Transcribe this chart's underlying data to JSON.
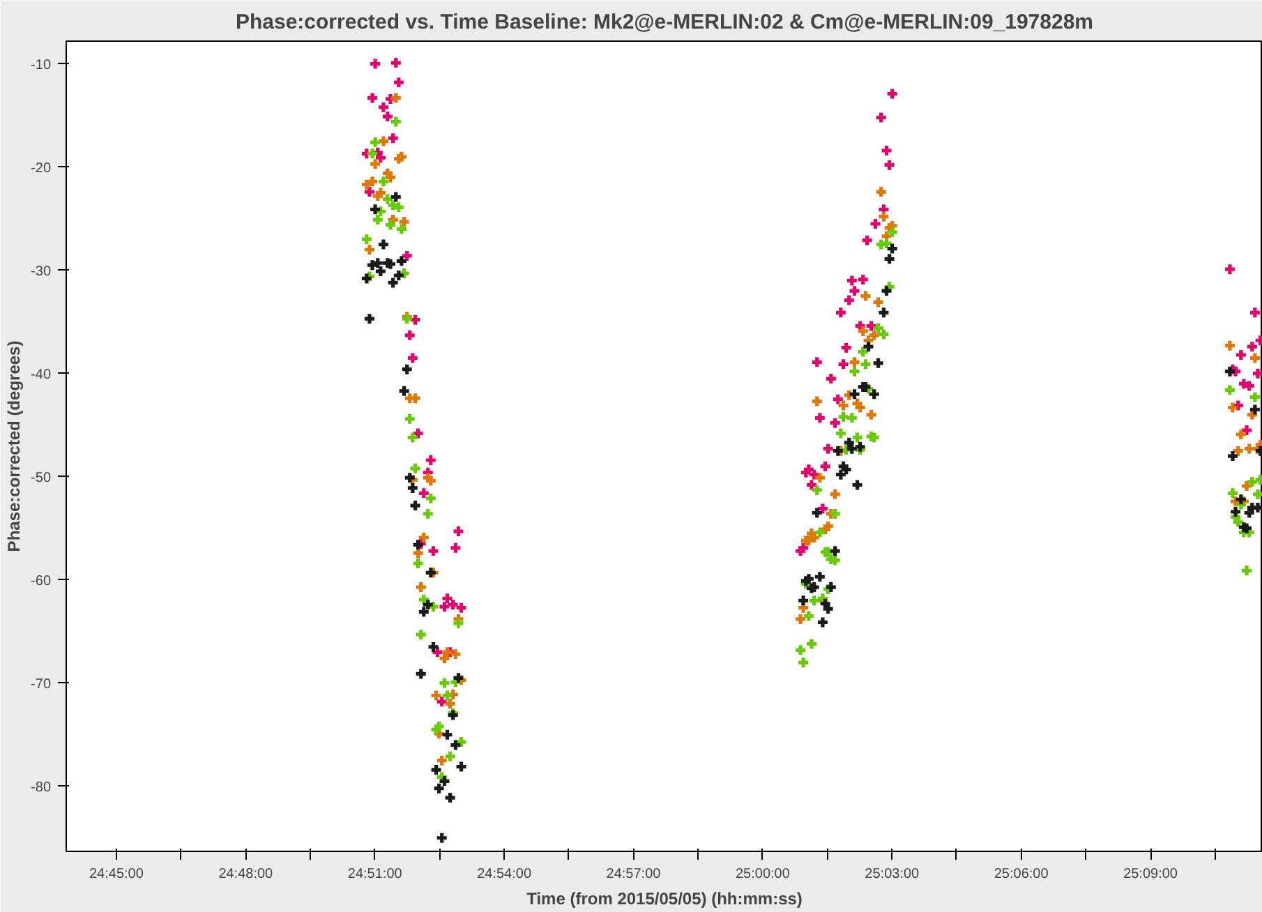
{
  "chart_data": {
    "type": "scatter",
    "title": "Phase:corrected vs. Time Baseline: Mk2@e-MERLIN:02 & Cm@e-MERLIN:09_197828m",
    "xlabel": "Time (from 2015/05/05) (hh:mm:ss)",
    "ylabel": "Phase:corrected (degrees)",
    "xlim": [
      24.7306,
      25.1934
    ],
    "ylim": [
      -86.3,
      -7.8
    ],
    "xticks": [
      {
        "value": 24.75,
        "label": "24:45:00"
      },
      {
        "value": 24.775,
        "label": null
      },
      {
        "value": 24.8,
        "label": "24:48:00"
      },
      {
        "value": 24.825,
        "label": null
      },
      {
        "value": 24.85,
        "label": "24:51:00"
      },
      {
        "value": 24.875,
        "label": null
      },
      {
        "value": 24.9,
        "label": "24:54:00"
      },
      {
        "value": 24.925,
        "label": null
      },
      {
        "value": 24.95,
        "label": "24:57:00"
      },
      {
        "value": 24.975,
        "label": null
      },
      {
        "value": 25.0,
        "label": "25:00:00"
      },
      {
        "value": 25.025,
        "label": null
      },
      {
        "value": 25.05,
        "label": "25:03:00"
      },
      {
        "value": 25.075,
        "label": null
      },
      {
        "value": 25.1,
        "label": "25:06:00"
      },
      {
        "value": 25.125,
        "label": null
      },
      {
        "value": 25.15,
        "label": "25:09:00"
      },
      {
        "value": 25.175,
        "label": null
      }
    ],
    "yticks": [
      -10,
      -20,
      -30,
      -40,
      -50,
      -60,
      -70,
      -80
    ],
    "grid": false,
    "marker": "cross",
    "series": [
      {
        "color": "#e6006e",
        "x": [
          24.8501,
          24.8581,
          24.8592,
          24.849,
          24.856,
          24.8533,
          24.8549,
          24.857,
          24.8468,
          24.8511,
          24.8522,
          24.8479,
          24.8624,
          24.8656,
          24.8635,
          24.8646,
          24.8667,
          24.8716,
          24.8705,
          24.8689,
          24.8823,
          24.8812,
          24.8726,
          24.8678,
          24.878,
          24.8769,
          24.8802,
          24.8834,
          24.8742,
          24.8791,
          24.8759,
          25.0501,
          25.0458,
          25.0479,
          25.049,
          25.0468,
          25.0436,
          25.0404,
          25.0345,
          25.0388,
          25.0355,
          25.0334,
          25.0302,
          25.0377,
          25.042,
          25.0323,
          25.021,
          25.0312,
          25.0264,
          25.0291,
          25.0221,
          25.028,
          25.0253,
          25.0167,
          25.0178,
          25.0199,
          25.0189,
          25.0242,
          25.0232,
          25.0146,
          25.0157,
          25.1807,
          25.1904,
          25.1925,
          25.1893,
          25.185,
          25.1818,
          25.1829,
          25.1915,
          25.1861,
          25.1882,
          25.1839,
          25.1872
        ],
        "values": [
          -10.0,
          -9.9,
          -11.8,
          -13.3,
          -13.4,
          -14.2,
          -15.1,
          -17.2,
          -18.7,
          -18.6,
          -19.1,
          -22.4,
          -28.6,
          -34.8,
          -36.3,
          -38.5,
          -45.8,
          -48.4,
          -49.6,
          -51.6,
          -55.3,
          -56.9,
          -57.2,
          -56.5,
          -61.8,
          -62.6,
          -62.4,
          -62.7,
          -67.0,
          -67.0,
          -71.8,
          -12.9,
          -15.2,
          -18.4,
          -19.8,
          -24.1,
          -25.5,
          -27.1,
          -31.0,
          -30.9,
          -32.0,
          -32.9,
          -34.1,
          -35.4,
          -35.4,
          -37.5,
          -38.9,
          -39.1,
          -40.5,
          -42.5,
          -44.3,
          -44.8,
          -47.3,
          -49.6,
          -49.3,
          -49.8,
          -50.8,
          -49.0,
          -53.1,
          -57.2,
          -56.9,
          -29.9,
          -34.1,
          -36.8,
          -37.4,
          -38.2,
          -39.6,
          -39.8,
          -40.0,
          -41.0,
          -41.2,
          -43.1,
          -45.5
        ]
      },
      {
        "color": "#e07800",
        "x": [
          24.8581,
          24.8533,
          24.8603,
          24.8592,
          24.8501,
          24.8549,
          24.856,
          24.8468,
          24.849,
          24.8511,
          24.8522,
          24.857,
          24.8613,
          24.8479,
          24.8624,
          24.8635,
          24.8656,
          24.8646,
          24.8705,
          24.8716,
          24.8689,
          24.8667,
          24.8726,
          24.8678,
          24.8823,
          24.878,
          24.8812,
          24.8769,
          24.8834,
          24.8802,
          24.8737,
          24.8791,
          24.8748,
          24.8759,
          25.0458,
          25.0468,
          25.049,
          25.0501,
          25.0479,
          25.0398,
          25.0447,
          25.0388,
          25.0431,
          25.0409,
          25.0355,
          25.021,
          25.0312,
          25.0366,
          25.0377,
          25.042,
          25.0334,
          25.0302,
          25.0221,
          25.028,
          25.0264,
          25.0242,
          25.0253,
          25.0189,
          25.0199,
          25.0167,
          25.0178,
          25.0232,
          25.0157,
          25.0146,
          25.1807,
          25.1904,
          25.1818,
          25.1893,
          25.185,
          25.1925,
          25.1915,
          25.1839,
          25.1882,
          25.1872,
          25.1829,
          25.1861
        ],
        "values": [
          -13.3,
          -17.5,
          -19.0,
          -19.2,
          -19.7,
          -20.6,
          -21.0,
          -21.7,
          -21.4,
          -22.8,
          -22.5,
          -25.1,
          -25.3,
          -28.0,
          -34.5,
          -42.4,
          -42.4,
          -50.3,
          -50.1,
          -50.4,
          -55.9,
          -57.4,
          -59.3,
          -60.7,
          -63.8,
          -67.0,
          -67.2,
          -67.6,
          -69.7,
          -71.1,
          -71.2,
          -72.0,
          -74.9,
          -77.5,
          -22.4,
          -24.8,
          -25.9,
          -25.7,
          -26.7,
          -32.5,
          -33.1,
          -35.9,
          -36.3,
          -36.8,
          -38.9,
          -42.7,
          -43.1,
          -42.9,
          -43.3,
          -44.0,
          -42.1,
          -47.5,
          -50.1,
          -51.7,
          -53.6,
          -55.1,
          -54.8,
          -55.5,
          -55.9,
          -56.2,
          -56.2,
          -62.0,
          -62.7,
          -63.8,
          -37.3,
          -38.5,
          -43.3,
          -44.0,
          -45.9,
          -46.9,
          -47.3,
          -47.5,
          -47.3,
          -50.9,
          -52.4,
          -52.4
        ]
      },
      {
        "color": "#66cc00",
        "x": [
          24.8581,
          24.8501,
          24.849,
          24.8533,
          24.8549,
          24.857,
          24.8592,
          24.8522,
          24.8511,
          24.856,
          24.8603,
          24.8468,
          24.8479,
          24.8613,
          24.8624,
          24.8635,
          24.8646,
          24.8656,
          24.8716,
          24.8705,
          24.8667,
          24.8689,
          24.8726,
          24.8823,
          24.8678,
          24.8769,
          24.8812,
          24.878,
          24.8802,
          24.8748,
          24.8737,
          24.8834,
          24.8791,
          24.8759,
          25.0501,
          25.0458,
          25.0479,
          25.049,
          25.0447,
          25.0468,
          25.0388,
          25.0398,
          25.0355,
          25.0409,
          25.0312,
          25.0345,
          25.0302,
          25.0366,
          25.042,
          25.0431,
          25.0323,
          25.0377,
          25.021,
          25.028,
          25.0221,
          25.0242,
          25.0253,
          25.0264,
          25.028,
          25.0167,
          25.0253,
          25.0199,
          25.0232,
          25.0178,
          25.0189,
          25.0146,
          25.0157,
          25.1807,
          25.1904,
          25.1925,
          25.1893,
          25.1818,
          25.1915,
          25.185,
          25.1829,
          25.1839,
          25.1861,
          25.1882,
          25.1872
        ],
        "values": [
          -15.6,
          -17.6,
          -18.7,
          -21.4,
          -23.1,
          -23.7,
          -23.9,
          -24.3,
          -25.1,
          -25.6,
          -26.0,
          -27.0,
          -30.6,
          -30.3,
          -34.7,
          -44.4,
          -46.2,
          -49.2,
          -52.1,
          -53.6,
          -58.4,
          -61.9,
          -62.6,
          -64.2,
          -65.3,
          -70.0,
          -69.9,
          -71.2,
          -72.9,
          -74.2,
          -74.5,
          -75.7,
          -77.1,
          -79.1,
          -26.3,
          -27.5,
          -27.4,
          -31.6,
          -35.6,
          -36.2,
          -37.9,
          -39.1,
          -39.8,
          -41.5,
          -44.2,
          -44.3,
          -45.8,
          -46.2,
          -46.1,
          -46.2,
          -47.4,
          -47.4,
          -51.3,
          -53.6,
          -55.4,
          -57.3,
          -57.3,
          -58.0,
          -58.1,
          -60.4,
          -60.9,
          -62.0,
          -61.8,
          -63.5,
          -66.2,
          -66.8,
          -68.0,
          -41.6,
          -42.3,
          -50.3,
          -50.5,
          -51.6,
          -51.7,
          -52.7,
          -53.9,
          -54.4,
          -55.4,
          -55.4,
          -59.1
        ]
      },
      {
        "color": "#1a1a1a",
        "x": [
          24.8581,
          24.8501,
          24.8533,
          24.8603,
          24.849,
          24.8511,
          24.8549,
          24.856,
          24.8522,
          24.8592,
          24.8468,
          24.857,
          24.8479,
          24.8624,
          24.8613,
          24.8635,
          24.8646,
          24.8656,
          24.8667,
          24.8716,
          24.8705,
          24.8689,
          24.8726,
          24.8678,
          24.8823,
          24.8802,
          24.878,
          24.8812,
          24.8834,
          24.8737,
          24.8769,
          24.8748,
          24.8791,
          24.8759,
          25.0501,
          25.049,
          25.0479,
          25.0468,
          25.0409,
          25.0447,
          25.0388,
          25.0398,
          25.0431,
          25.0355,
          25.0334,
          25.0345,
          25.0377,
          25.0291,
          25.0312,
          25.0323,
          25.0302,
          25.0366,
          25.021,
          25.028,
          25.0178,
          25.0167,
          25.0221,
          25.0189,
          25.0199,
          25.0264,
          25.0157,
          25.0242,
          25.0253,
          25.0232,
          25.1807,
          25.1904,
          25.1925,
          25.1818,
          25.185,
          25.1893,
          25.1915,
          25.1829,
          25.1882,
          25.1861,
          25.1872
        ],
        "values": [
          -22.9,
          -24.1,
          -27.5,
          -29.1,
          -29.5,
          -29.3,
          -29.3,
          -29.4,
          -30.1,
          -30.5,
          -30.8,
          -31.2,
          -34.7,
          -39.6,
          -41.7,
          -50.1,
          -51.1,
          -52.8,
          -56.6,
          -59.3,
          -62.4,
          -63.1,
          -66.5,
          -69.1,
          -69.5,
          -73.1,
          -75.0,
          -76.0,
          -78.1,
          -78.4,
          -79.5,
          -80.2,
          -81.1,
          -85.0,
          -27.9,
          -28.9,
          -32.0,
          -34.1,
          -37.4,
          -39.0,
          -41.3,
          -41.3,
          -42.0,
          -42.0,
          -46.7,
          -47.3,
          -47.1,
          -47.5,
          -49.0,
          -49.3,
          -49.8,
          -50.8,
          -53.5,
          -57.2,
          -59.9,
          -60.1,
          -59.7,
          -60.8,
          -60.7,
          -60.7,
          -62.0,
          -62.3,
          -62.8,
          -64.1,
          -39.8,
          -43.5,
          -47.5,
          -48.0,
          -52.2,
          -53.0,
          -53.0,
          -53.4,
          -53.5,
          -54.9,
          -55.0
        ]
      }
    ]
  }
}
